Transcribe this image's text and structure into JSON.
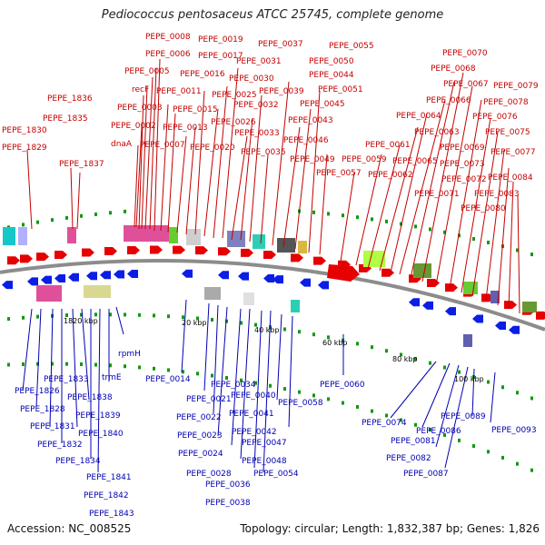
{
  "title": "Pediococcus pentosaceus ATCC 25745, complete genome",
  "accession": "Accession: NC_008525",
  "topology": "Topology: circular; Length: 1,832,387 bp; Genes: 1,826",
  "colors": {
    "forward_label": "#c40000",
    "reverse_label": "#0000b4",
    "forward_arrow": "#e60000",
    "reverse_arrow": "#0a1ee6",
    "backbone": "#8c8c8c",
    "tick_dot": "#119911"
  },
  "scale_ticks": [
    "1820 kbp",
    "20 kbp",
    "40 kbp",
    "60 kbp",
    "80 kbp",
    "100 kbp"
  ],
  "forward_labels": [
    "PEPE_0008",
    "PEPE_0019",
    "PEPE_0037",
    "PEPE_0055",
    "PEPE_0070",
    "PEPE_0006",
    "PEPE_0017",
    "PEPE_0031",
    "PEPE_0050",
    "PEPE_0068",
    "PEPE_0005",
    "PEPE_0016",
    "PEPE_0030",
    "PEPE_0044",
    "PEPE_0067",
    "PEPE_0079",
    "recF",
    "PEPE_0011",
    "PEPE_0025",
    "PEPE_0039",
    "PEPE_0051",
    "PEPE_0066",
    "PEPE_0078",
    "PEPE_0003",
    "PEPE_0015",
    "PEPE_0032",
    "PEPE_0045",
    "PEPE_0064",
    "PEPE_0076",
    "PEPE_0002",
    "PEPE_0013",
    "PEPE_0026",
    "PEPE_0043",
    "PEPE_0063",
    "PEPE_0075",
    "dnaA",
    "PEPE_0007",
    "PEPE_0020",
    "PEPE_0033",
    "PEPE_0046",
    "PEPE_0061",
    "PEPE_0069",
    "PEPE_0077",
    "PEPE_0035",
    "PEPE_0049",
    "PEPE_0059",
    "PEPE_0065",
    "PEPE_0073",
    "PEPE_0057",
    "PEPE_0062",
    "PEPE_0072",
    "PEPE_0084",
    "PEPE_0071",
    "PEPE_0083",
    "PEPE_0080",
    "PEPE_1836",
    "PEPE_1835",
    "PEPE_1830",
    "PEPE_1829",
    "PEPE_1837"
  ],
  "reverse_labels": [
    "rpmH",
    "PEPE_0014",
    "PEPE_0060",
    "PEPE_1833",
    "trmE",
    "PEPE_1826",
    "PEPE_1838",
    "PEPE_1828",
    "PEPE_1839",
    "PEPE_1831",
    "PEPE_1840",
    "PEPE_1832",
    "PEPE_1834",
    "PEPE_1841",
    "PEPE_1842",
    "PEPE_1843",
    "PEPE_0034",
    "PEPE_0021",
    "PEPE_0040",
    "PEPE_0041",
    "PEPE_0022",
    "PEPE_0058",
    "PEPE_0042",
    "PEPE_0023",
    "PEPE_0047",
    "PEPE_0024",
    "PEPE_0048",
    "PEPE_0028",
    "PEPE_0054",
    "PEPE_0036",
    "PEPE_0038",
    "PEPE_0074",
    "PEPE_0089",
    "PEPE_0086",
    "PEPE_0093",
    "PEPE_0081",
    "PEPE_0082",
    "PEPE_0087"
  ]
}
